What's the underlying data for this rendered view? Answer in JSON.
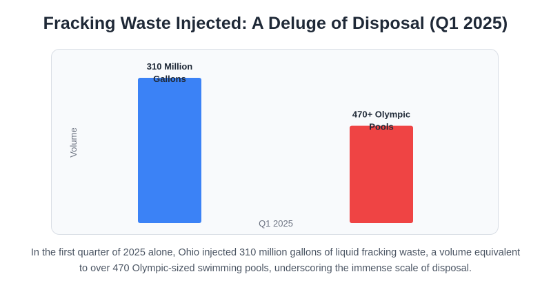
{
  "title": "Fracking Waste Injected: A Deluge of Disposal (Q1 2025)",
  "caption": {
    "line1": "In the first quarter of 2025 alone, Ohio injected 310 million gallons of liquid fracking waste, a volume equivalent",
    "line2": "to over 470 Olympic-sized swimming pools, underscoring the immense scale of disposal."
  },
  "colors": {
    "bar_gallons": "#3b82f6",
    "bar_pools": "#ef4444",
    "panel_background": "#f8fafc"
  },
  "chart_data": {
    "type": "bar",
    "categories": [
      "Q1 2025"
    ],
    "xlabel": "Q1 2025",
    "ylabel": "Volume",
    "grid": false,
    "series": [
      {
        "value": 310,
        "label_lines": [
          "310 Million",
          "Gallons"
        ],
        "color": "#3b82f6"
      },
      {
        "value": 470,
        "label_lines": [
          "470+ Olympic",
          "Pools"
        ],
        "color": "#ef4444"
      }
    ],
    "relative_heights": [
      1.0,
      0.67
    ]
  }
}
